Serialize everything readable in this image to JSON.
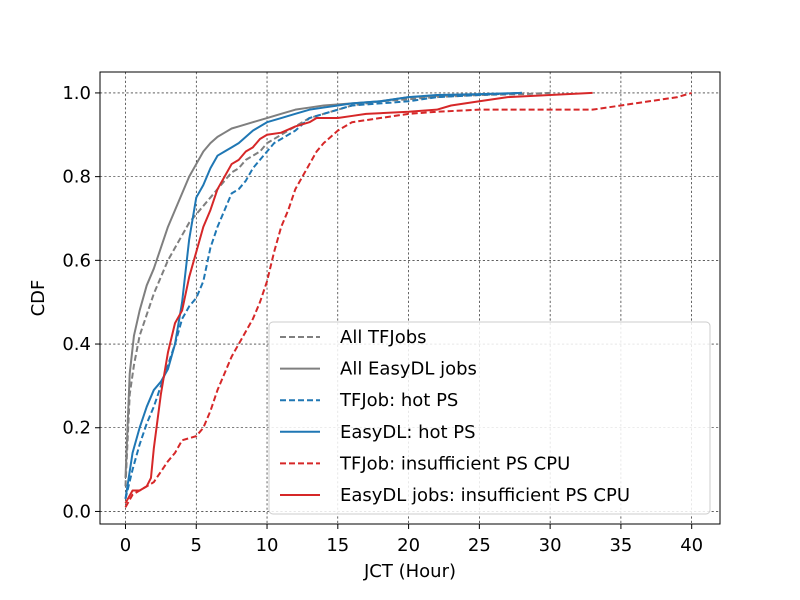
{
  "chart_data": {
    "type": "line",
    "xlabel": "JCT (Hour)",
    "ylabel": "CDF",
    "xlim": [
      -1.8,
      42
    ],
    "ylim": [
      -0.03,
      1.05
    ],
    "xticks": [
      0,
      5,
      10,
      15,
      20,
      25,
      30,
      35,
      40
    ],
    "yticks": [
      0.0,
      0.2,
      0.4,
      0.6,
      0.8,
      1.0
    ],
    "xtick_labels": [
      "0",
      "5",
      "10",
      "15",
      "20",
      "25",
      "30",
      "35",
      "40"
    ],
    "ytick_labels": [
      "0.0",
      "0.2",
      "0.4",
      "0.6",
      "0.8",
      "1.0"
    ],
    "grid": true,
    "legend_position": "lower-right",
    "series": [
      {
        "name": "All TFJobs",
        "color": "#7f7f7f",
        "dash": "dashed",
        "points": [
          [
            0,
            0.06
          ],
          [
            0.3,
            0.28
          ],
          [
            0.6,
            0.35
          ],
          [
            1,
            0.42
          ],
          [
            1.5,
            0.47
          ],
          [
            2,
            0.52
          ],
          [
            2.5,
            0.56
          ],
          [
            3,
            0.6
          ],
          [
            3.5,
            0.63
          ],
          [
            4,
            0.66
          ],
          [
            4.5,
            0.69
          ],
          [
            5,
            0.71
          ],
          [
            5.5,
            0.73
          ],
          [
            6,
            0.75
          ],
          [
            6.5,
            0.77
          ],
          [
            7,
            0.79
          ],
          [
            7.5,
            0.81
          ],
          [
            8,
            0.82
          ],
          [
            8.5,
            0.84
          ],
          [
            9,
            0.85
          ],
          [
            9.5,
            0.86
          ],
          [
            10,
            0.88
          ],
          [
            11,
            0.9
          ],
          [
            12,
            0.92
          ],
          [
            13,
            0.94
          ],
          [
            14,
            0.95
          ],
          [
            15,
            0.96
          ],
          [
            16,
            0.97
          ],
          [
            18,
            0.98
          ],
          [
            20,
            0.985
          ],
          [
            22,
            0.99
          ],
          [
            25,
            0.995
          ],
          [
            28,
            0.997
          ],
          [
            30,
            1.0
          ]
        ]
      },
      {
        "name": "All EasyDL jobs",
        "color": "#7f7f7f",
        "dash": "solid",
        "points": [
          [
            0,
            0.08
          ],
          [
            0.3,
            0.33
          ],
          [
            0.6,
            0.42
          ],
          [
            1,
            0.48
          ],
          [
            1.5,
            0.54
          ],
          [
            2,
            0.58
          ],
          [
            2.5,
            0.63
          ],
          [
            3,
            0.68
          ],
          [
            3.5,
            0.72
          ],
          [
            4,
            0.76
          ],
          [
            4.5,
            0.8
          ],
          [
            5,
            0.83
          ],
          [
            5.5,
            0.86
          ],
          [
            6,
            0.88
          ],
          [
            6.5,
            0.895
          ],
          [
            7,
            0.905
          ],
          [
            7.5,
            0.915
          ],
          [
            8,
            0.92
          ],
          [
            9,
            0.93
          ],
          [
            10,
            0.94
          ],
          [
            11,
            0.95
          ],
          [
            12,
            0.96
          ],
          [
            13,
            0.965
          ],
          [
            14,
            0.97
          ],
          [
            16,
            0.975
          ],
          [
            18,
            0.98
          ],
          [
            20,
            0.99
          ],
          [
            22,
            0.993
          ],
          [
            25,
            0.996
          ],
          [
            28,
            1.0
          ]
        ]
      },
      {
        "name": "TFJob: hot PS",
        "color": "#1f77b4",
        "dash": "dashed",
        "points": [
          [
            0,
            0.03
          ],
          [
            0.5,
            0.1
          ],
          [
            1,
            0.16
          ],
          [
            1.5,
            0.21
          ],
          [
            2,
            0.25
          ],
          [
            2.5,
            0.3
          ],
          [
            3,
            0.35
          ],
          [
            3.5,
            0.4
          ],
          [
            4,
            0.46
          ],
          [
            4.5,
            0.49
          ],
          [
            5,
            0.51
          ],
          [
            5.5,
            0.55
          ],
          [
            6,
            0.63
          ],
          [
            6.5,
            0.68
          ],
          [
            7,
            0.72
          ],
          [
            7.5,
            0.76
          ],
          [
            8,
            0.77
          ],
          [
            8.5,
            0.79
          ],
          [
            9,
            0.82
          ],
          [
            9.5,
            0.84
          ],
          [
            10,
            0.86
          ],
          [
            10.5,
            0.88
          ],
          [
            11,
            0.89
          ],
          [
            12,
            0.91
          ],
          [
            13,
            0.94
          ],
          [
            14,
            0.95
          ],
          [
            15,
            0.96
          ],
          [
            16,
            0.97
          ],
          [
            18,
            0.975
          ],
          [
            20,
            0.98
          ],
          [
            22,
            0.99
          ],
          [
            25,
            0.995
          ],
          [
            28,
            1.0
          ]
        ]
      },
      {
        "name": "EasyDL: hot PS",
        "color": "#1f77b4",
        "dash": "solid",
        "points": [
          [
            0,
            0.03
          ],
          [
            0.5,
            0.14
          ],
          [
            1,
            0.2
          ],
          [
            1.5,
            0.25
          ],
          [
            2,
            0.29
          ],
          [
            2.5,
            0.31
          ],
          [
            3,
            0.34
          ],
          [
            3.5,
            0.4
          ],
          [
            4,
            0.5
          ],
          [
            4.5,
            0.65
          ],
          [
            5,
            0.75
          ],
          [
            5.5,
            0.78
          ],
          [
            6,
            0.82
          ],
          [
            6.5,
            0.85
          ],
          [
            7,
            0.86
          ],
          [
            7.5,
            0.87
          ],
          [
            8,
            0.88
          ],
          [
            9,
            0.91
          ],
          [
            10,
            0.93
          ],
          [
            11,
            0.94
          ],
          [
            12,
            0.95
          ],
          [
            13,
            0.96
          ],
          [
            14,
            0.965
          ],
          [
            15,
            0.97
          ],
          [
            16,
            0.975
          ],
          [
            18,
            0.98
          ],
          [
            20,
            0.99
          ],
          [
            22,
            0.995
          ],
          [
            25,
            0.997
          ],
          [
            28,
            1.0
          ]
        ]
      },
      {
        "name": "TFJob: insufficient PS CPU",
        "color": "#d62728",
        "dash": "dashed",
        "points": [
          [
            0,
            0.01
          ],
          [
            0.5,
            0.04
          ],
          [
            1,
            0.05
          ],
          [
            2,
            0.07
          ],
          [
            3,
            0.12
          ],
          [
            3.5,
            0.14
          ],
          [
            4,
            0.17
          ],
          [
            5,
            0.18
          ],
          [
            5.5,
            0.2
          ],
          [
            6,
            0.24
          ],
          [
            6.5,
            0.29
          ],
          [
            7,
            0.33
          ],
          [
            7.5,
            0.37
          ],
          [
            8,
            0.4
          ],
          [
            8.5,
            0.43
          ],
          [
            9,
            0.46
          ],
          [
            9.5,
            0.5
          ],
          [
            10,
            0.55
          ],
          [
            10.5,
            0.62
          ],
          [
            11,
            0.68
          ],
          [
            11.5,
            0.72
          ],
          [
            12,
            0.77
          ],
          [
            12.5,
            0.8
          ],
          [
            13,
            0.83
          ],
          [
            13.5,
            0.86
          ],
          [
            14,
            0.88
          ],
          [
            15,
            0.91
          ],
          [
            16,
            0.93
          ],
          [
            18,
            0.94
          ],
          [
            20,
            0.95
          ],
          [
            22,
            0.955
          ],
          [
            25,
            0.96
          ],
          [
            30,
            0.96
          ],
          [
            33,
            0.96
          ],
          [
            35,
            0.97
          ],
          [
            37,
            0.98
          ],
          [
            39,
            0.99
          ],
          [
            40,
            1.0
          ]
        ]
      },
      {
        "name": "EasyDL jobs: insufficient PS CPU",
        "color": "#d62728",
        "dash": "solid",
        "points": [
          [
            0,
            0.02
          ],
          [
            0.5,
            0.05
          ],
          [
            1,
            0.05
          ],
          [
            1.5,
            0.06
          ],
          [
            1.8,
            0.08
          ],
          [
            2,
            0.15
          ],
          [
            2.5,
            0.28
          ],
          [
            3,
            0.38
          ],
          [
            3.5,
            0.45
          ],
          [
            4,
            0.48
          ],
          [
            4.5,
            0.56
          ],
          [
            5,
            0.62
          ],
          [
            5.5,
            0.68
          ],
          [
            6,
            0.72
          ],
          [
            6.5,
            0.77
          ],
          [
            7,
            0.8
          ],
          [
            7.5,
            0.83
          ],
          [
            8,
            0.84
          ],
          [
            8.5,
            0.86
          ],
          [
            9,
            0.87
          ],
          [
            9.5,
            0.89
          ],
          [
            10,
            0.9
          ],
          [
            11,
            0.905
          ],
          [
            12,
            0.92
          ],
          [
            13,
            0.93
          ],
          [
            13.5,
            0.94
          ],
          [
            14,
            0.94
          ],
          [
            15,
            0.94
          ],
          [
            16,
            0.945
          ],
          [
            17,
            0.95
          ],
          [
            20,
            0.955
          ],
          [
            22,
            0.96
          ],
          [
            23,
            0.97
          ],
          [
            25,
            0.98
          ],
          [
            27,
            0.99
          ],
          [
            30,
            0.995
          ],
          [
            33,
            1.0
          ]
        ]
      }
    ]
  }
}
